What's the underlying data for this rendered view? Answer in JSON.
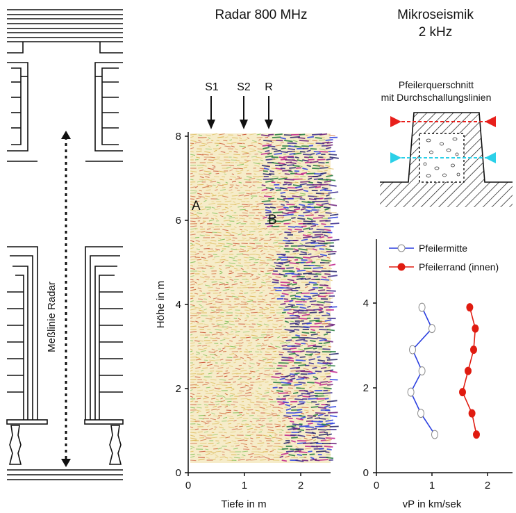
{
  "radar": {
    "title": "Radar 800 MHz",
    "markers": [
      "S1",
      "S2",
      "R"
    ],
    "region_labels": [
      "A",
      "B"
    ],
    "ylabel": "Höhe in m",
    "xlabel": "Tiefe in m",
    "x_ticks": [
      "0",
      "1",
      "2"
    ],
    "y_ticks": [
      "0",
      "2",
      "4",
      "6",
      "8"
    ],
    "xlim": [
      0,
      2.5
    ],
    "ylim": [
      0,
      8.2
    ],
    "measure_line_label": "Meßlinie Radar"
  },
  "seismic": {
    "title_line1": "Mikroseismik",
    "title_line2": "2 kHz",
    "cross_section_title_line1": "Pfeilerquerschnitt",
    "cross_section_title_line2": "mit Durchschallungslinien",
    "colors": {
      "top_line": "#e8201c",
      "center_line": "#2bd0e8",
      "inner_curve": "#2b3fe0",
      "outer_curve": "#e01b10"
    }
  },
  "chart_data": {
    "type": "line",
    "xlabel": "vP in km/sek",
    "ylabel": "",
    "xlim": [
      0,
      2.5
    ],
    "ylim": [
      0,
      5.5
    ],
    "x_ticks": [
      "0",
      "1",
      "2"
    ],
    "y_ticks": [
      "0",
      "2",
      "4"
    ],
    "series": [
      {
        "name": "Pfeilermitte",
        "color": "#2b3fe0",
        "marker": "open-circle",
        "points": [
          [
            0.82,
            3.9
          ],
          [
            1.0,
            3.4
          ],
          [
            0.65,
            2.9
          ],
          [
            0.82,
            2.4
          ],
          [
            0.62,
            1.9
          ],
          [
            0.8,
            1.4
          ],
          [
            1.05,
            0.9
          ]
        ]
      },
      {
        "name": "Pfeilerrand (innen)",
        "color": "#e01b10",
        "marker": "filled-circle",
        "points": [
          [
            1.68,
            3.9
          ],
          [
            1.78,
            3.4
          ],
          [
            1.75,
            2.9
          ],
          [
            1.65,
            2.4
          ],
          [
            1.55,
            1.9
          ],
          [
            1.72,
            1.4
          ],
          [
            1.8,
            0.9
          ]
        ]
      }
    ]
  }
}
